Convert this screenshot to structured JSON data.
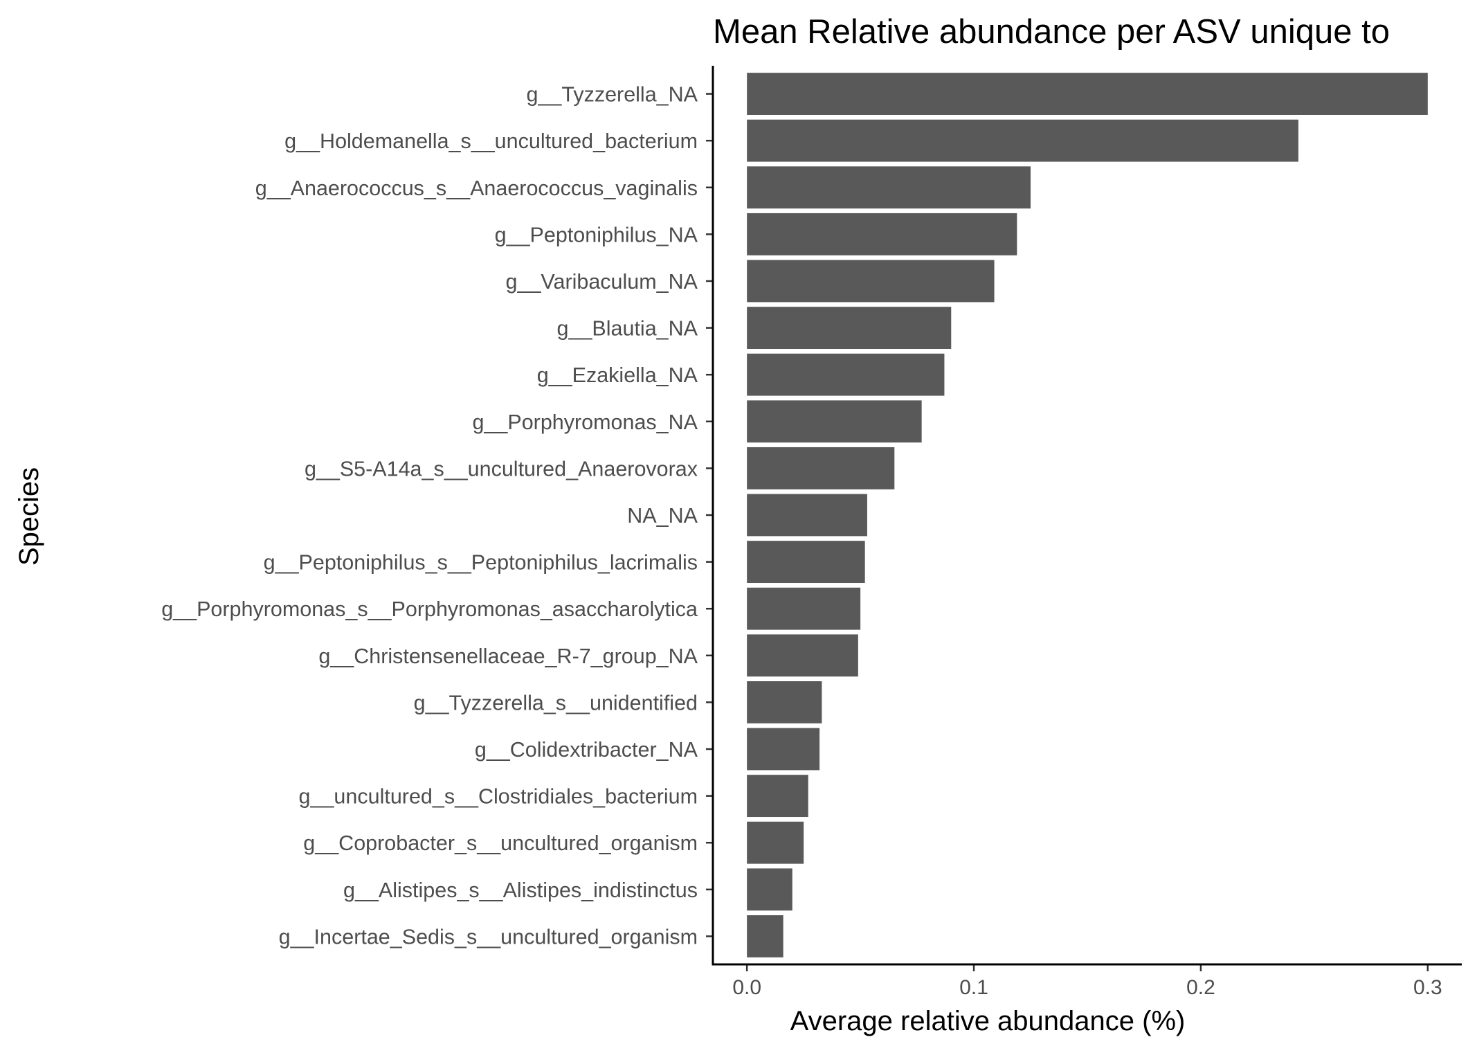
{
  "chart_data": {
    "type": "bar",
    "orientation": "horizontal",
    "title": "Mean Relative abundance per ASV unique to",
    "xlabel": "Average relative abundance (%)",
    "ylabel": "Species",
    "xlim": [
      -0.015,
      0.315
    ],
    "x_ticks": [
      0.0,
      0.1,
      0.2,
      0.3
    ],
    "x_tick_labels": [
      "0.0",
      "0.1",
      "0.2",
      "0.3"
    ],
    "grid": false,
    "legend": "none",
    "bar_color": "#595959",
    "categories": [
      "g__Tyzzerella_NA",
      "g__Holdemanella_s__uncultured_bacterium",
      "g__Anaerococcus_s__Anaerococcus_vaginalis",
      "g__Peptoniphilus_NA",
      "g__Varibaculum_NA",
      "g__Blautia_NA",
      "g__Ezakiella_NA",
      "g__Porphyromonas_NA",
      "g__S5-A14a_s__uncultured_Anaerovorax",
      "NA_NA",
      "g__Peptoniphilus_s__Peptoniphilus_lacrimalis",
      "g__Porphyromonas_s__Porphyromonas_asaccharolytica",
      "g__Christensenellaceae_R-7_group_NA",
      "g__Tyzzerella_s__unidentified",
      "g__Colidextribacter_NA",
      "g__uncultured_s__Clostridiales_bacterium",
      "g__Coprobacter_s__uncultured_organism",
      "g__Alistipes_s__Alistipes_indistinctus",
      "g__Incertae_Sedis_s__uncultured_organism"
    ],
    "values": [
      0.3,
      0.243,
      0.125,
      0.119,
      0.109,
      0.09,
      0.087,
      0.077,
      0.065,
      0.053,
      0.052,
      0.05,
      0.049,
      0.033,
      0.032,
      0.027,
      0.025,
      0.02,
      0.016
    ]
  }
}
